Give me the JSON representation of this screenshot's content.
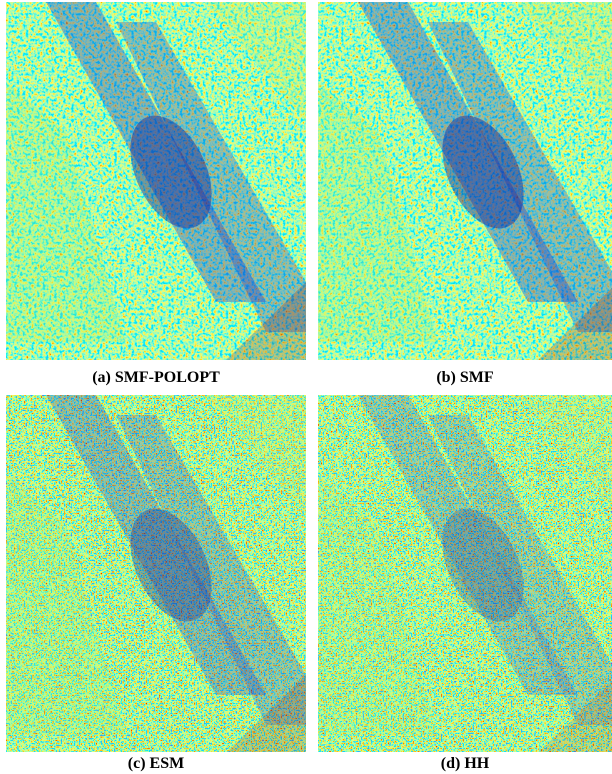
{
  "panels": [
    {
      "caption": "(a) SMF-POLOPT"
    },
    {
      "caption": "(b) SMF"
    },
    {
      "caption": "(c) ESM"
    },
    {
      "caption": "(d) HH"
    }
  ]
}
